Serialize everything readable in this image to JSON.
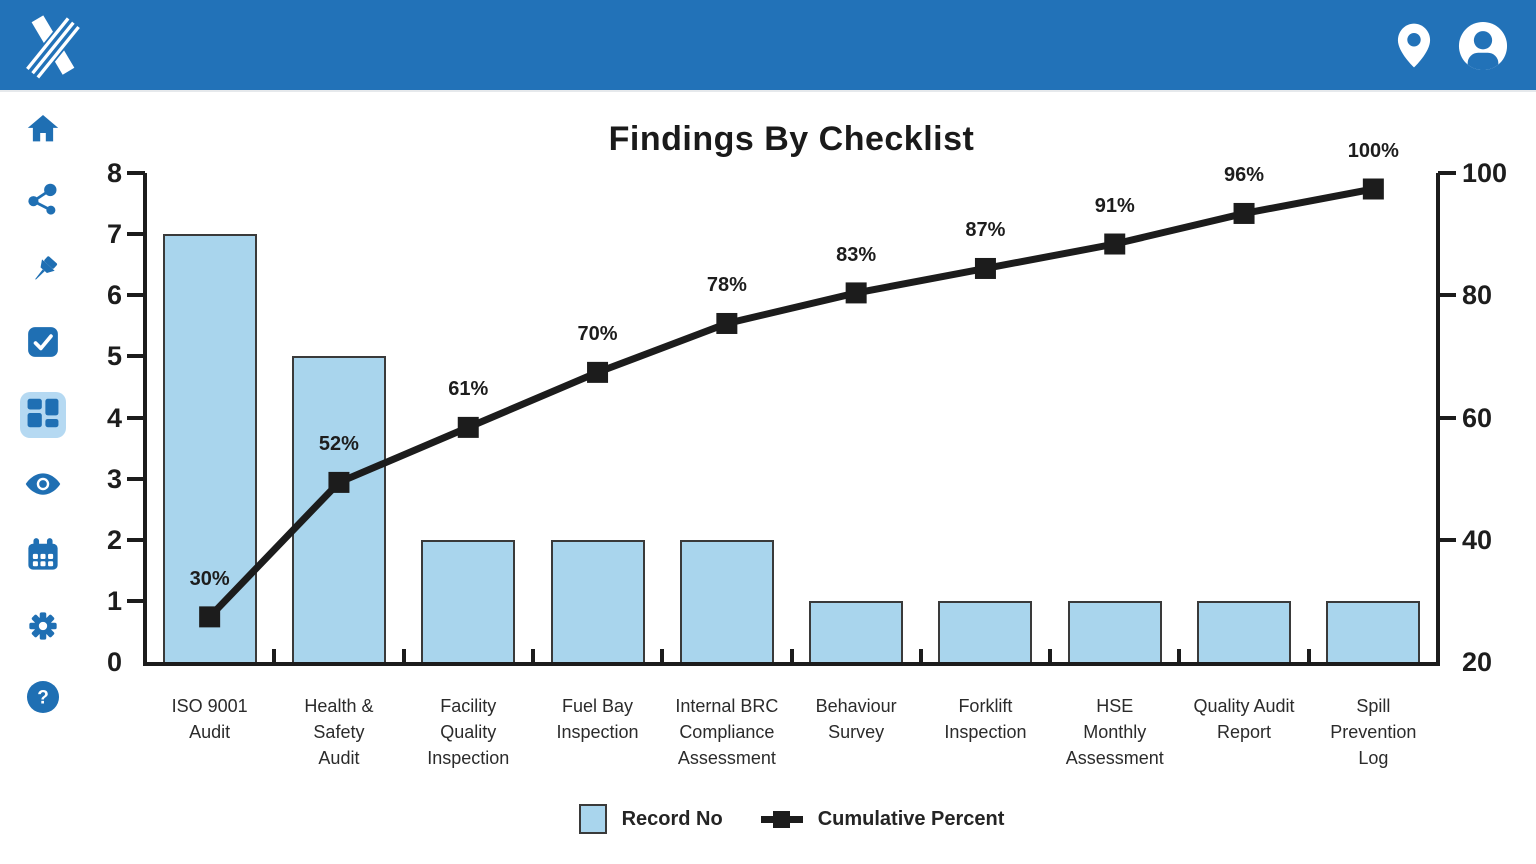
{
  "header": {
    "logo_icon": "x-stripes-logo",
    "right_icons": [
      "location-pin-icon",
      "user-profile-icon"
    ]
  },
  "sidebar": {
    "active_index": 4,
    "items": [
      {
        "icon": "home-icon"
      },
      {
        "icon": "share-nodes-icon"
      },
      {
        "icon": "pushpin-icon"
      },
      {
        "icon": "checkbox-check-icon"
      },
      {
        "icon": "dashboard-grid-icon"
      },
      {
        "icon": "eye-icon"
      },
      {
        "icon": "calendar-icon"
      },
      {
        "icon": "settings-gear-icon"
      },
      {
        "icon": "help-circle-icon"
      }
    ]
  },
  "colors": {
    "header_blue": "#2272B8",
    "icon_blue": "#1F6FB3",
    "active_item_bg": "#B5D9F2",
    "bar_fill": "#A9D5ED",
    "bar_border": "#3A3A3A",
    "line_black": "#1C1C1C",
    "text_dark": "#1D1D1D"
  },
  "chart_data": {
    "type": "pareto",
    "title": "Findings By Checklist",
    "categories": [
      [
        "ISO 9001",
        "Audit"
      ],
      [
        "Health &",
        "Safety",
        "Audit"
      ],
      [
        "Facility",
        "Quality",
        "Inspection"
      ],
      [
        "Fuel Bay",
        "Inspection"
      ],
      [
        "Internal BRC",
        "Compliance",
        "Assessment"
      ],
      [
        "Behaviour",
        "Survey"
      ],
      [
        "Forklift",
        "Inspection"
      ],
      [
        "HSE",
        "Monthly",
        "Assessment"
      ],
      [
        "Quality Audit",
        "Report"
      ],
      [
        "Spill",
        "Prevention",
        "Log"
      ]
    ],
    "series": [
      {
        "name": "Record No",
        "chart_type": "bar",
        "axis": "left",
        "color": "#A9D5ED",
        "border_color": "#3A3A3A",
        "values": [
          7,
          5,
          2,
          2,
          2,
          1,
          1,
          1,
          1,
          1
        ]
      },
      {
        "name": "Cumulative Percent",
        "chart_type": "line",
        "axis": "right",
        "color": "#1C1C1C",
        "values_pct": [
          30,
          52,
          61,
          70,
          78,
          83,
          87,
          91,
          96,
          100
        ],
        "point_labels": [
          "30%",
          "52%",
          "61%",
          "70%",
          "78%",
          "83%",
          "87%",
          "91%",
          "96%",
          "100%"
        ]
      }
    ],
    "left_axis": {
      "min": 0,
      "max": 8,
      "ticks": [
        0,
        1,
        2,
        3,
        4,
        5,
        6,
        7,
        8
      ]
    },
    "right_axis": {
      "min": 20,
      "max": 100,
      "ticks": [
        20,
        40,
        60,
        80,
        100
      ]
    },
    "legend": [
      "Record No",
      "Cumulative Percent"
    ],
    "legend_position": "bottom",
    "grid": false
  }
}
